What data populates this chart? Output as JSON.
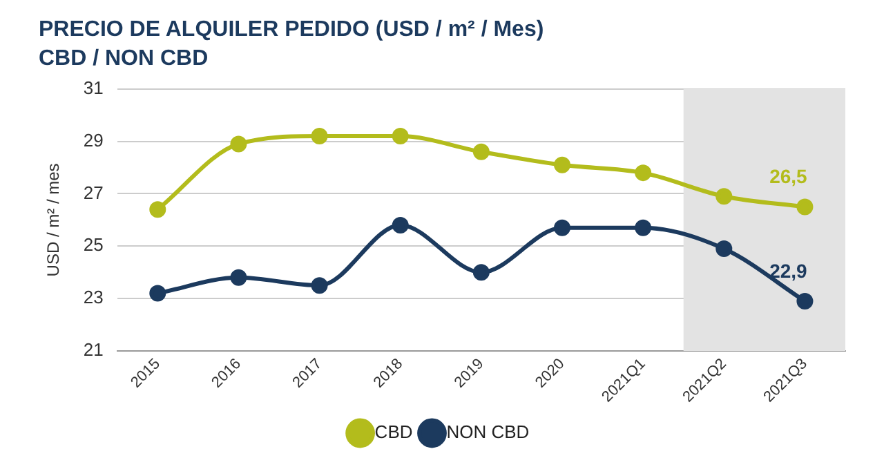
{
  "chart_data": {
    "type": "line",
    "title": "PRECIO DE ALQUILER PEDIDO (USD / m² / Mes)",
    "subtitle": "CBD / NON CBD",
    "ylabel": "USD / m² / mes",
    "categories": [
      "2015",
      "2016",
      "2017",
      "2018",
      "2019",
      "2020",
      "2021Q1",
      "2021Q2",
      "2021Q3"
    ],
    "series": [
      {
        "name": "CBD",
        "color": "#b3bc1c",
        "values": [
          26.4,
          28.9,
          29.2,
          29.2,
          28.6,
          28.1,
          27.8,
          26.9,
          26.5
        ],
        "value_labels": [
          null,
          null,
          null,
          null,
          null,
          null,
          null,
          null,
          "26,5"
        ]
      },
      {
        "name": "NON CBD",
        "color": "#1c3a5e",
        "values": [
          23.2,
          23.8,
          23.5,
          25.8,
          24.0,
          25.7,
          25.7,
          24.9,
          22.9
        ],
        "value_labels": [
          null,
          null,
          null,
          null,
          null,
          null,
          null,
          null,
          "22,9"
        ]
      }
    ],
    "ylim": [
      21,
      31
    ],
    "yticks": [
      21,
      23,
      25,
      27,
      29,
      31
    ],
    "grid": "y",
    "legend": "bottom",
    "marker": "circle",
    "line_style": "solid",
    "bands": [
      {
        "axis": "x",
        "from": "2021Q2",
        "to": "2021Q3",
        "color": "#e3e3e3"
      }
    ]
  }
}
